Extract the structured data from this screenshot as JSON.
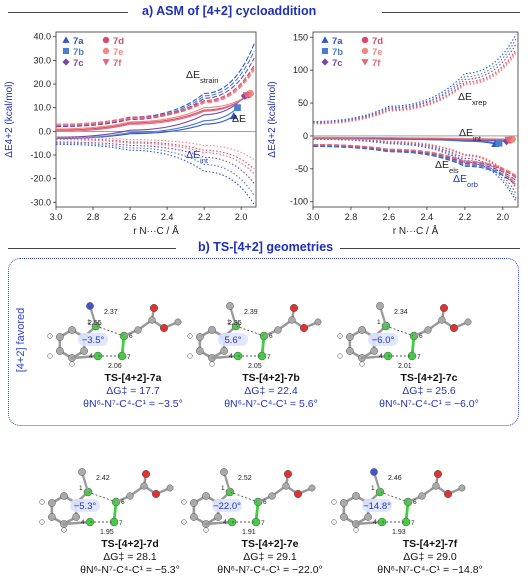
{
  "section_a": {
    "title": "a) ASM of [4+2] cycloaddition"
  },
  "section_b": {
    "title": "b) TS-[4+2] geometries"
  },
  "favored_label": "[4+2] favored",
  "legend": [
    "7a",
    "7b",
    "7c",
    "7d",
    "7e",
    "7f"
  ],
  "legend_colors": {
    "7a": "#2f55c8",
    "7b": "#4a7fd0",
    "7c": "#7a4aa0",
    "7d": "#d84b6e",
    "7e": "#f08a80",
    "7f": "#e06878"
  },
  "chart_data": [
    {
      "type": "line",
      "xlabel": "r N···C / Å",
      "ylabel": "ΔE4+2 (kcal/mol)",
      "xlim": [
        3.0,
        1.92
      ],
      "ylim": [
        -32,
        42
      ],
      "xticks": [
        "3.0",
        "2.8",
        "2.6",
        "2.4",
        "2.2",
        "2.0"
      ],
      "yticks": [
        "40.0",
        "30.0",
        "20.0",
        "10.0",
        "0.0",
        "-10.0",
        "-20.0",
        "-30.0"
      ],
      "annotations": [
        "ΔEstrain",
        "ΔE",
        "ΔEint"
      ],
      "endpoints": [
        {
          "name": "7a",
          "x": 2.04,
          "y": 6.5
        },
        {
          "name": "7b",
          "x": 2.02,
          "y": 10.0
        },
        {
          "name": "7c",
          "x": 1.98,
          "y": 15.0
        },
        {
          "name": "7d",
          "x": 1.96,
          "y": 15.5
        },
        {
          "name": "7e",
          "x": 1.95,
          "y": 16.0
        },
        {
          "name": "7f",
          "x": 1.97,
          "y": 15.2
        }
      ],
      "series": [
        {
          "name": "7a",
          "strain": [
            [
              3.0,
              2.5
            ],
            [
              2.6,
              6.0
            ],
            [
              2.2,
              16.0
            ],
            [
              1.93,
              37.0
            ]
          ],
          "total": [
            [
              3.0,
              -3.0
            ],
            [
              2.6,
              -1.0
            ],
            [
              2.2,
              3.0
            ],
            [
              2.04,
              6.5
            ]
          ],
          "int": [
            [
              3.0,
              -5.5
            ],
            [
              2.6,
              -8.0
            ],
            [
              2.2,
              -17.0
            ],
            [
              1.93,
              -31.0
            ]
          ]
        },
        {
          "name": "7b",
          "strain": [
            [
              3.0,
              2.0
            ],
            [
              2.6,
              5.5
            ],
            [
              2.2,
              15.0
            ],
            [
              1.93,
              34.0
            ]
          ],
          "total": [
            [
              3.0,
              -3.0
            ],
            [
              2.6,
              -0.5
            ],
            [
              2.2,
              4.5
            ],
            [
              2.02,
              10.0
            ]
          ],
          "int": [
            [
              3.0,
              -5.0
            ],
            [
              2.6,
              -7.0
            ],
            [
              2.2,
              -14.0
            ],
            [
              1.93,
              -27.0
            ]
          ]
        },
        {
          "name": "7c",
          "strain": [
            [
              3.0,
              2.0
            ],
            [
              2.6,
              5.0
            ],
            [
              2.2,
              14.0
            ],
            [
              1.93,
              31.0
            ]
          ],
          "total": [
            [
              3.0,
              -2.5
            ],
            [
              2.6,
              0.5
            ],
            [
              2.2,
              7.0
            ],
            [
              1.98,
              15.0
            ]
          ],
          "int": [
            [
              3.0,
              -4.5
            ],
            [
              2.6,
              -6.0
            ],
            [
              2.2,
              -11.0
            ],
            [
              1.93,
              -22.0
            ]
          ]
        },
        {
          "name": "7d",
          "strain": [
            [
              3.0,
              3.0
            ],
            [
              2.6,
              6.0
            ],
            [
              2.2,
              13.0
            ],
            [
              1.93,
              28.0
            ]
          ],
          "total": [
            [
              3.0,
              0.5
            ],
            [
              2.6,
              3.5
            ],
            [
              2.2,
              9.0
            ],
            [
              1.96,
              15.5
            ]
          ],
          "int": [
            [
              3.0,
              -3.0
            ],
            [
              2.6,
              -4.5
            ],
            [
              2.2,
              -8.0
            ],
            [
              1.93,
              -16.0
            ]
          ]
        },
        {
          "name": "7e",
          "strain": [
            [
              3.0,
              3.0
            ],
            [
              2.6,
              5.5
            ],
            [
              2.2,
              12.0
            ],
            [
              1.93,
              26.0
            ]
          ],
          "total": [
            [
              3.0,
              1.0
            ],
            [
              2.6,
              4.0
            ],
            [
              2.2,
              10.0
            ],
            [
              1.95,
              16.0
            ]
          ],
          "int": [
            [
              3.0,
              -2.5
            ],
            [
              2.6,
              -3.5
            ],
            [
              2.2,
              -6.0
            ],
            [
              1.93,
              -12.0
            ]
          ]
        },
        {
          "name": "7f",
          "strain": [
            [
              3.0,
              2.5
            ],
            [
              2.6,
              5.5
            ],
            [
              2.2,
              12.5
            ],
            [
              1.93,
              27.0
            ]
          ],
          "total": [
            [
              3.0,
              0.0
            ],
            [
              2.6,
              3.0
            ],
            [
              2.2,
              8.5
            ],
            [
              1.97,
              15.2
            ]
          ],
          "int": [
            [
              3.0,
              -3.5
            ],
            [
              2.6,
              -5.0
            ],
            [
              2.2,
              -9.0
            ],
            [
              1.93,
              -18.0
            ]
          ]
        }
      ]
    },
    {
      "type": "line",
      "xlabel": "r N···C / Å",
      "ylabel": "ΔE4+2 (kcal/mol)",
      "xlim": [
        3.0,
        1.92
      ],
      "ylim": [
        -108,
        158
      ],
      "xticks": [
        "3.0",
        "2.8",
        "2.6",
        "2.4",
        "2.2",
        "2.0"
      ],
      "yticks": [
        "150",
        "100",
        "50",
        "0",
        "-50",
        "-100"
      ],
      "annotations": [
        "ΔExrep",
        "ΔEint",
        "ΔEels",
        "ΔEorb"
      ],
      "endpoints": [
        {
          "name": "7a",
          "x": 2.04,
          "y": -12
        },
        {
          "name": "7b",
          "x": 2.02,
          "y": -11
        },
        {
          "name": "7c",
          "x": 1.98,
          "y": -8
        },
        {
          "name": "7d",
          "x": 1.96,
          "y": -6
        },
        {
          "name": "7e",
          "x": 1.95,
          "y": -5
        },
        {
          "name": "7f",
          "x": 1.97,
          "y": -6
        }
      ],
      "series": [
        {
          "name": "7a",
          "xrep": [
            [
              3.0,
              22
            ],
            [
              2.6,
              45
            ],
            [
              2.2,
              95
            ],
            [
              1.93,
              155
            ]
          ],
          "int": [
            [
              3.0,
              -4
            ],
            [
              2.6,
              -5
            ],
            [
              2.2,
              -8
            ],
            [
              2.04,
              -12
            ]
          ],
          "els": [
            [
              3.0,
              -16
            ],
            [
              2.6,
              -24
            ],
            [
              2.2,
              -46
            ],
            [
              1.93,
              -75
            ]
          ],
          "orb": [
            [
              3.0,
              -5
            ],
            [
              2.6,
              -12
            ],
            [
              2.2,
              -40
            ],
            [
              1.93,
              -100
            ]
          ]
        },
        {
          "name": "7b",
          "xrep": [
            [
              3.0,
              21
            ],
            [
              2.6,
              43
            ],
            [
              2.2,
              90
            ],
            [
              1.93,
              148
            ]
          ],
          "int": [
            [
              3.0,
              -4
            ],
            [
              2.6,
              -5
            ],
            [
              2.2,
              -7
            ],
            [
              2.02,
              -11
            ]
          ],
          "els": [
            [
              3.0,
              -15
            ],
            [
              2.6,
              -23
            ],
            [
              2.2,
              -44
            ],
            [
              1.93,
              -72
            ]
          ],
          "orb": [
            [
              3.0,
              -5
            ],
            [
              2.6,
              -11
            ],
            [
              2.2,
              -37
            ],
            [
              1.93,
              -95
            ]
          ]
        },
        {
          "name": "7c",
          "xrep": [
            [
              3.0,
              20
            ],
            [
              2.6,
              42
            ],
            [
              2.2,
              86
            ],
            [
              1.93,
              140
            ]
          ],
          "int": [
            [
              3.0,
              -3
            ],
            [
              2.6,
              -4
            ],
            [
              2.2,
              -6
            ],
            [
              1.98,
              -8
            ]
          ],
          "els": [
            [
              3.0,
              -14
            ],
            [
              2.6,
              -22
            ],
            [
              2.2,
              -42
            ],
            [
              1.93,
              -68
            ]
          ],
          "orb": [
            [
              3.0,
              -5
            ],
            [
              2.6,
              -10
            ],
            [
              2.2,
              -34
            ],
            [
              1.93,
              -88
            ]
          ]
        },
        {
          "name": "7d",
          "xrep": [
            [
              3.0,
              19
            ],
            [
              2.6,
              40
            ],
            [
              2.2,
              82
            ],
            [
              1.93,
              132
            ]
          ],
          "int": [
            [
              3.0,
              -3
            ],
            [
              2.6,
              -3
            ],
            [
              2.2,
              -5
            ],
            [
              1.96,
              -6
            ]
          ],
          "els": [
            [
              3.0,
              -14
            ],
            [
              2.6,
              -21
            ],
            [
              2.2,
              -40
            ],
            [
              1.93,
              -64
            ]
          ],
          "orb": [
            [
              3.0,
              -4
            ],
            [
              2.6,
              -9
            ],
            [
              2.2,
              -30
            ],
            [
              1.93,
              -80
            ]
          ]
        },
        {
          "name": "7e",
          "xrep": [
            [
              3.0,
              18
            ],
            [
              2.6,
              38
            ],
            [
              2.2,
              78
            ],
            [
              1.93,
              126
            ]
          ],
          "int": [
            [
              3.0,
              -2
            ],
            [
              2.6,
              -3
            ],
            [
              2.2,
              -4
            ],
            [
              1.95,
              -5
            ]
          ],
          "els": [
            [
              3.0,
              -13
            ],
            [
              2.6,
              -20
            ],
            [
              2.2,
              -38
            ],
            [
              1.93,
              -60
            ]
          ],
          "orb": [
            [
              3.0,
              -4
            ],
            [
              2.6,
              -8
            ],
            [
              2.2,
              -28
            ],
            [
              1.93,
              -75
            ]
          ]
        },
        {
          "name": "7f",
          "xrep": [
            [
              3.0,
              19
            ],
            [
              2.6,
              39
            ],
            [
              2.2,
              80
            ],
            [
              1.93,
              129
            ]
          ],
          "int": [
            [
              3.0,
              -3
            ],
            [
              2.6,
              -3
            ],
            [
              2.2,
              -5
            ],
            [
              1.97,
              -6
            ]
          ],
          "els": [
            [
              3.0,
              -13
            ],
            [
              2.6,
              -21
            ],
            [
              2.2,
              -39
            ],
            [
              1.93,
              -62
            ]
          ],
          "orb": [
            [
              3.0,
              -4
            ],
            [
              2.6,
              -9
            ],
            [
              2.2,
              -29
            ],
            [
              1.93,
              -78
            ]
          ]
        }
      ]
    }
  ],
  "ts": [
    {
      "name": "TS-[4+2]-7a",
      "dg_label": "ΔG‡ = 17.7",
      "theta_label": "θN⁶-N⁷-C⁴-C¹ = −3.5°",
      "angle": "−3.5°",
      "d1": "2.37",
      "d2": "2.55",
      "d3": "2.06",
      "n1": "1",
      "n6": "6",
      "n4": "4",
      "n7": "7",
      "favored": true
    },
    {
      "name": "TS-[4+2]-7b",
      "dg_label": "ΔG‡ = 22.4",
      "theta_label": "θN⁶-N⁷-C⁴-C¹ = 5.6°",
      "angle": "5.6°",
      "d1": "2.39",
      "d2": "2.35",
      "d3": "2.05",
      "n1": "1",
      "n6": "6",
      "n4": "4",
      "n7": "7",
      "favored": true
    },
    {
      "name": "TS-[4+2]-7c",
      "dg_label": "ΔG‡ = 25.6",
      "theta_label": "θN⁶-N⁷-C⁴-C¹ = −6.0°",
      "angle": "−6.0°",
      "d1": "2.34",
      "d2": "",
      "d3": "2.01",
      "n1": "1",
      "n6": "6",
      "n4": "4",
      "n7": "7",
      "favored": true
    },
    {
      "name": "TS-[4+2]-7d",
      "dg_label": "ΔG‡ = 28.1",
      "theta_label": "θN⁶-N⁷-C⁴-C¹ = −5.3°",
      "angle": "−5.3°",
      "d1": "2.42",
      "d2": "",
      "d3": "1.95",
      "n1": "1",
      "n6": "6",
      "n4": "4",
      "n7": "7",
      "favored": false
    },
    {
      "name": "TS-[4+2]-7e",
      "dg_label": "ΔG‡ = 29.1",
      "theta_label": "θN⁶-N⁷-C⁴-C¹ = −22.0°",
      "angle": "−22.0°",
      "d1": "2.52",
      "d2": "",
      "d3": "1.91",
      "n1": "1",
      "n6": "6",
      "n4": "4",
      "n7": "7",
      "favored": false
    },
    {
      "name": "TS-[4+2]-7f",
      "dg_label": "ΔG‡ = 29.0",
      "theta_label": "θN⁶-N⁷-C⁴-C¹ = −14.8°",
      "angle": "−14.8°",
      "d1": "2.46",
      "d2": "",
      "d3": "1.93",
      "n1": "1",
      "n6": "6",
      "n4": "4",
      "n7": "7",
      "favored": false
    }
  ]
}
